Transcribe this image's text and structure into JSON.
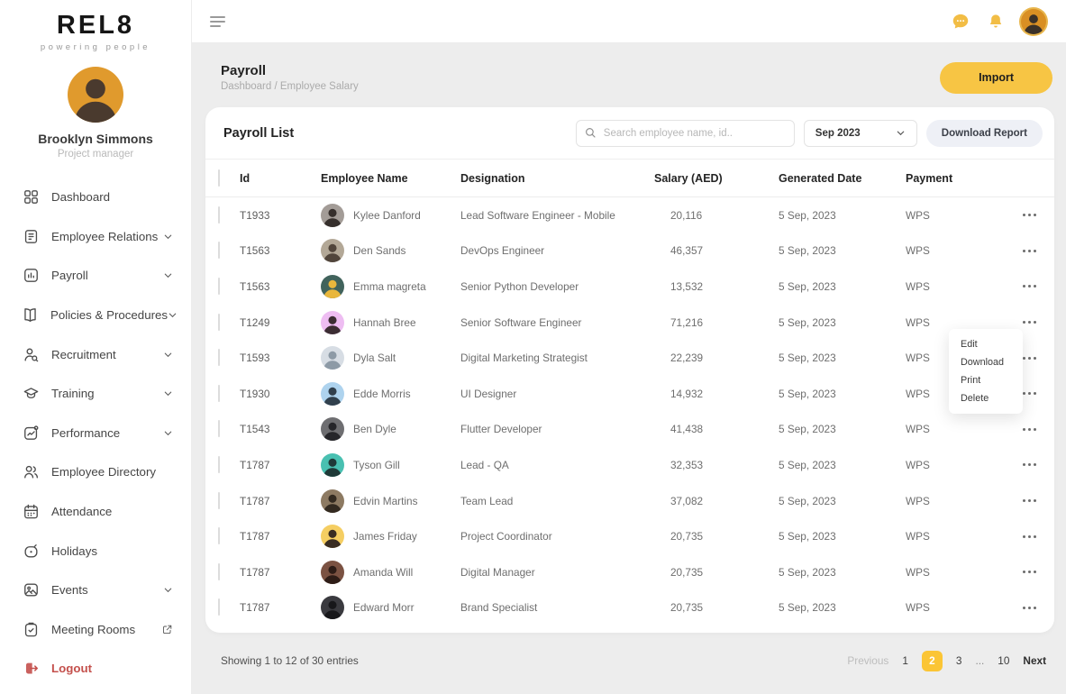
{
  "brand": {
    "logo": "REL8",
    "tagline": "powering people"
  },
  "profile": {
    "name": "Brooklyn Simmons",
    "role": "Project manager",
    "avatar": [
      "#e09a2d",
      "#4a3a2e"
    ]
  },
  "sidebar": {
    "items": [
      {
        "label": "Dashboard",
        "icon": "dashboard-icon"
      },
      {
        "label": "Employee Relations",
        "icon": "employee-relations-icon",
        "chevron": true
      },
      {
        "label": "Payroll",
        "icon": "payroll-icon",
        "chevron": true
      },
      {
        "label": "Policies & Procedures",
        "icon": "policies-icon",
        "chevron": true
      },
      {
        "label": "Recruitment",
        "icon": "recruitment-icon",
        "chevron": true
      },
      {
        "label": "Training",
        "icon": "training-icon",
        "chevron": true
      },
      {
        "label": "Performance",
        "icon": "performance-icon",
        "chevron": true
      },
      {
        "label": "Employee Directory",
        "icon": "employee-directory-icon"
      },
      {
        "label": "Attendance",
        "icon": "attendance-icon"
      },
      {
        "label": "Holidays",
        "icon": "holidays-icon"
      },
      {
        "label": "Events",
        "icon": "events-icon",
        "chevron": true
      },
      {
        "label": "Meeting Rooms",
        "icon": "meeting-rooms-icon",
        "external": true
      },
      {
        "label": "Logout",
        "icon": "logout-icon",
        "danger": true
      }
    ]
  },
  "topbar": {
    "avatar": [
      "#d98f23",
      "#3b3128"
    ]
  },
  "page_header": {
    "title": "Payroll",
    "breadcrumb": "Dashboard / Employee Salary",
    "import_label": "Import"
  },
  "toolbar": {
    "list_title": "Payroll List",
    "search_placeholder": "Search employee name, id..",
    "period": "Sep 2023",
    "download_label": "Download Report"
  },
  "table": {
    "columns": [
      "Id",
      "Employee Name",
      "Designation",
      "Salary (AED)",
      "Generated Date",
      "Payment"
    ],
    "rows": [
      {
        "id": "T1933",
        "name": "Kylee Danford",
        "designation": "Lead Software Engineer - Mobile",
        "salary": "20,116",
        "date": "5 Sep, 2023",
        "payment": "WPS",
        "avatar": [
          "#a39c97",
          "#362f2c"
        ]
      },
      {
        "id": "T1563",
        "name": "Den Sands",
        "designation": "DevOps Engineer",
        "salary": "46,357",
        "date": "5 Sep, 2023",
        "payment": "WPS",
        "avatar": [
          "#b3a897",
          "#51453b"
        ]
      },
      {
        "id": "T1563",
        "name": "Emma magreta",
        "designation": "Senior Python Developer",
        "salary": "13,532",
        "date": "5 Sep, 2023",
        "payment": "WPS",
        "avatar": [
          "#41635c",
          "#e9b73c"
        ]
      },
      {
        "id": "T1249",
        "name": "Hannah Bree",
        "designation": "Senior Software Engineer",
        "salary": "71,216",
        "date": "5 Sep, 2023",
        "payment": "WPS",
        "avatar": [
          "#eebdf2",
          "#3c2d33"
        ]
      },
      {
        "id": "T1593",
        "name": "Dyla Salt",
        "designation": "Digital Marketing Strategist",
        "salary": "22,239",
        "date": "5 Sep, 2023",
        "payment": "WPS",
        "avatar": [
          "#d7dde4",
          "#8d9aa6"
        ]
      },
      {
        "id": "T1930",
        "name": "Edde Morris",
        "designation": "UI Designer",
        "salary": "14,932",
        "date": "5 Sep, 2023",
        "payment": "WPS",
        "avatar": [
          "#aed3ee",
          "#31404d"
        ]
      },
      {
        "id": "T1543",
        "name": "Ben Dyle",
        "designation": "Flutter Developer",
        "salary": "41,438",
        "date": "5 Sep, 2023",
        "payment": "WPS",
        "avatar": [
          "#6e6e71",
          "#26262a"
        ]
      },
      {
        "id": "T1787",
        "name": "Tyson Gill",
        "designation": "Lead - QA",
        "salary": "32,353",
        "date": "5 Sep, 2023",
        "payment": "WPS",
        "avatar": [
          "#49c0b1",
          "#1f3a38"
        ]
      },
      {
        "id": "T1787",
        "name": "Edvin Martins",
        "designation": "Team Lead",
        "salary": "37,082",
        "date": "5 Sep, 2023",
        "payment": "WPS",
        "avatar": [
          "#8d7a62",
          "#332a20"
        ]
      },
      {
        "id": "T1787",
        "name": "James Friday",
        "designation": "Project Coordinator",
        "salary": "20,735",
        "date": "5 Sep, 2023",
        "payment": "WPS",
        "avatar": [
          "#f5ce62",
          "#3a2d22"
        ]
      },
      {
        "id": "T1787",
        "name": "Amanda Will",
        "designation": "Digital Manager",
        "salary": "20,735",
        "date": "5 Sep, 2023",
        "payment": "WPS",
        "avatar": [
          "#7b5242",
          "#2e1d17"
        ]
      },
      {
        "id": "T1787",
        "name": "Edward Morr",
        "designation": "Brand Specialist",
        "salary": "20,735",
        "date": "5 Sep, 2023",
        "payment": "WPS",
        "avatar": [
          "#3a3a3f",
          "#17171a"
        ]
      }
    ]
  },
  "context_menu": {
    "items": [
      "Edit",
      "Download",
      "Print",
      "Delete"
    ]
  },
  "footer": {
    "summary": "Showing 1 to 12 of 30 entries",
    "pagination": [
      {
        "label": "Previous",
        "kind": "prev"
      },
      {
        "label": "1",
        "kind": "page"
      },
      {
        "label": "2",
        "kind": "page",
        "active": true
      },
      {
        "label": "3",
        "kind": "page"
      },
      {
        "label": "...",
        "kind": "ellipsis"
      },
      {
        "label": "10",
        "kind": "page"
      },
      {
        "label": "Next",
        "kind": "next"
      }
    ]
  },
  "colors": {
    "accent_yellow": "#f7c544",
    "active_page": "#fbc535",
    "danger_red": "#c4504c",
    "content_bg": "#ededed"
  }
}
